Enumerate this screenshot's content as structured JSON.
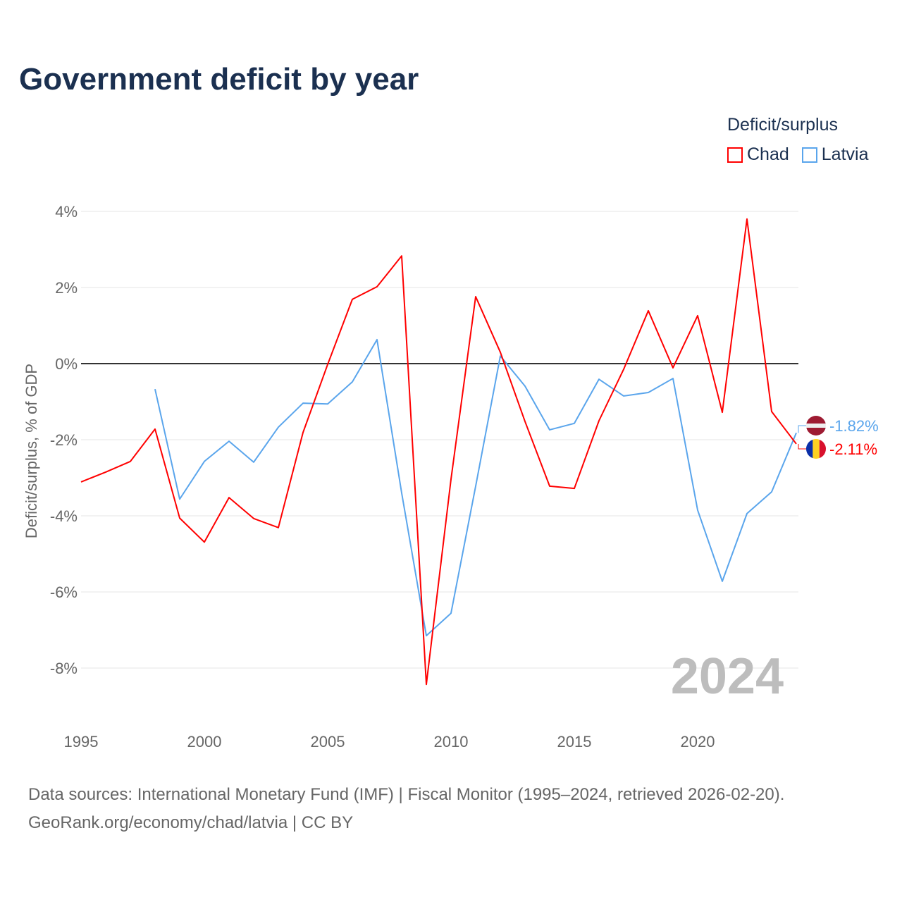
{
  "title": "Government deficit by year",
  "legend": {
    "title": "Deficit/surplus",
    "items": [
      {
        "label": "Chad",
        "color": "#ff0000"
      },
      {
        "label": "Latvia",
        "color": "#5aa5ec"
      }
    ]
  },
  "source": {
    "line1": "Data sources: International Monetary Fund (IMF) | Fiscal Monitor (1995–2024, retrieved 2026-02-20).",
    "line2": "GeoRank.org/economy/chad/latvia | CC BY"
  },
  "chart_data": {
    "type": "line",
    "title": "Government deficit by year",
    "xlabel": "",
    "ylabel": "Deficit/surplus, % of GDP",
    "xlim": [
      1995,
      2024
    ],
    "ylim": [
      -9,
      4.5
    ],
    "xticks": [
      1995,
      2000,
      2005,
      2010,
      2015,
      2020
    ],
    "yticks": [
      4,
      2,
      0,
      -2,
      -4,
      -6,
      -8
    ],
    "ytick_labels": [
      "4%",
      "2%",
      "0%",
      "-2%",
      "-4%",
      "-6%",
      "-8%"
    ],
    "watermark": "2024",
    "series": [
      {
        "name": "Chad",
        "color": "#ff0000",
        "end_label": "-2.11%",
        "x": [
          1995,
          1996,
          1997,
          1998,
          1999,
          2000,
          2001,
          2002,
          2003,
          2004,
          2005,
          2006,
          2007,
          2008,
          2009,
          2010,
          2011,
          2012,
          2013,
          2014,
          2015,
          2016,
          2017,
          2018,
          2019,
          2020,
          2021,
          2022,
          2023,
          2024
        ],
        "values": [
          -3.11,
          -2.85,
          -2.57,
          -1.72,
          -4.06,
          -4.69,
          -3.52,
          -4.07,
          -4.31,
          -1.81,
          -0.02,
          1.69,
          2.02,
          2.83,
          -8.43,
          -3.04,
          1.76,
          0.3,
          -1.52,
          -3.22,
          -3.28,
          -1.5,
          -0.15,
          1.39,
          -0.11,
          1.26,
          -1.28,
          3.8,
          -1.26,
          -2.11
        ]
      },
      {
        "name": "Latvia",
        "color": "#5aa5ec",
        "end_label": "-1.82%",
        "x": [
          1998,
          1999,
          2000,
          2001,
          2002,
          2003,
          2004,
          2005,
          2006,
          2007,
          2008,
          2009,
          2010,
          2011,
          2012,
          2013,
          2014,
          2015,
          2016,
          2017,
          2018,
          2019,
          2020,
          2021,
          2022,
          2023,
          2024
        ],
        "values": [
          -0.67,
          -3.56,
          -2.57,
          -2.04,
          -2.59,
          -1.67,
          -1.04,
          -1.06,
          -0.48,
          0.63,
          -3.4,
          -7.15,
          -6.56,
          -3.22,
          0.2,
          -0.59,
          -1.74,
          -1.57,
          -0.41,
          -0.85,
          -0.76,
          -0.39,
          -3.85,
          -5.72,
          -3.94,
          -3.37,
          -1.82
        ]
      }
    ]
  }
}
